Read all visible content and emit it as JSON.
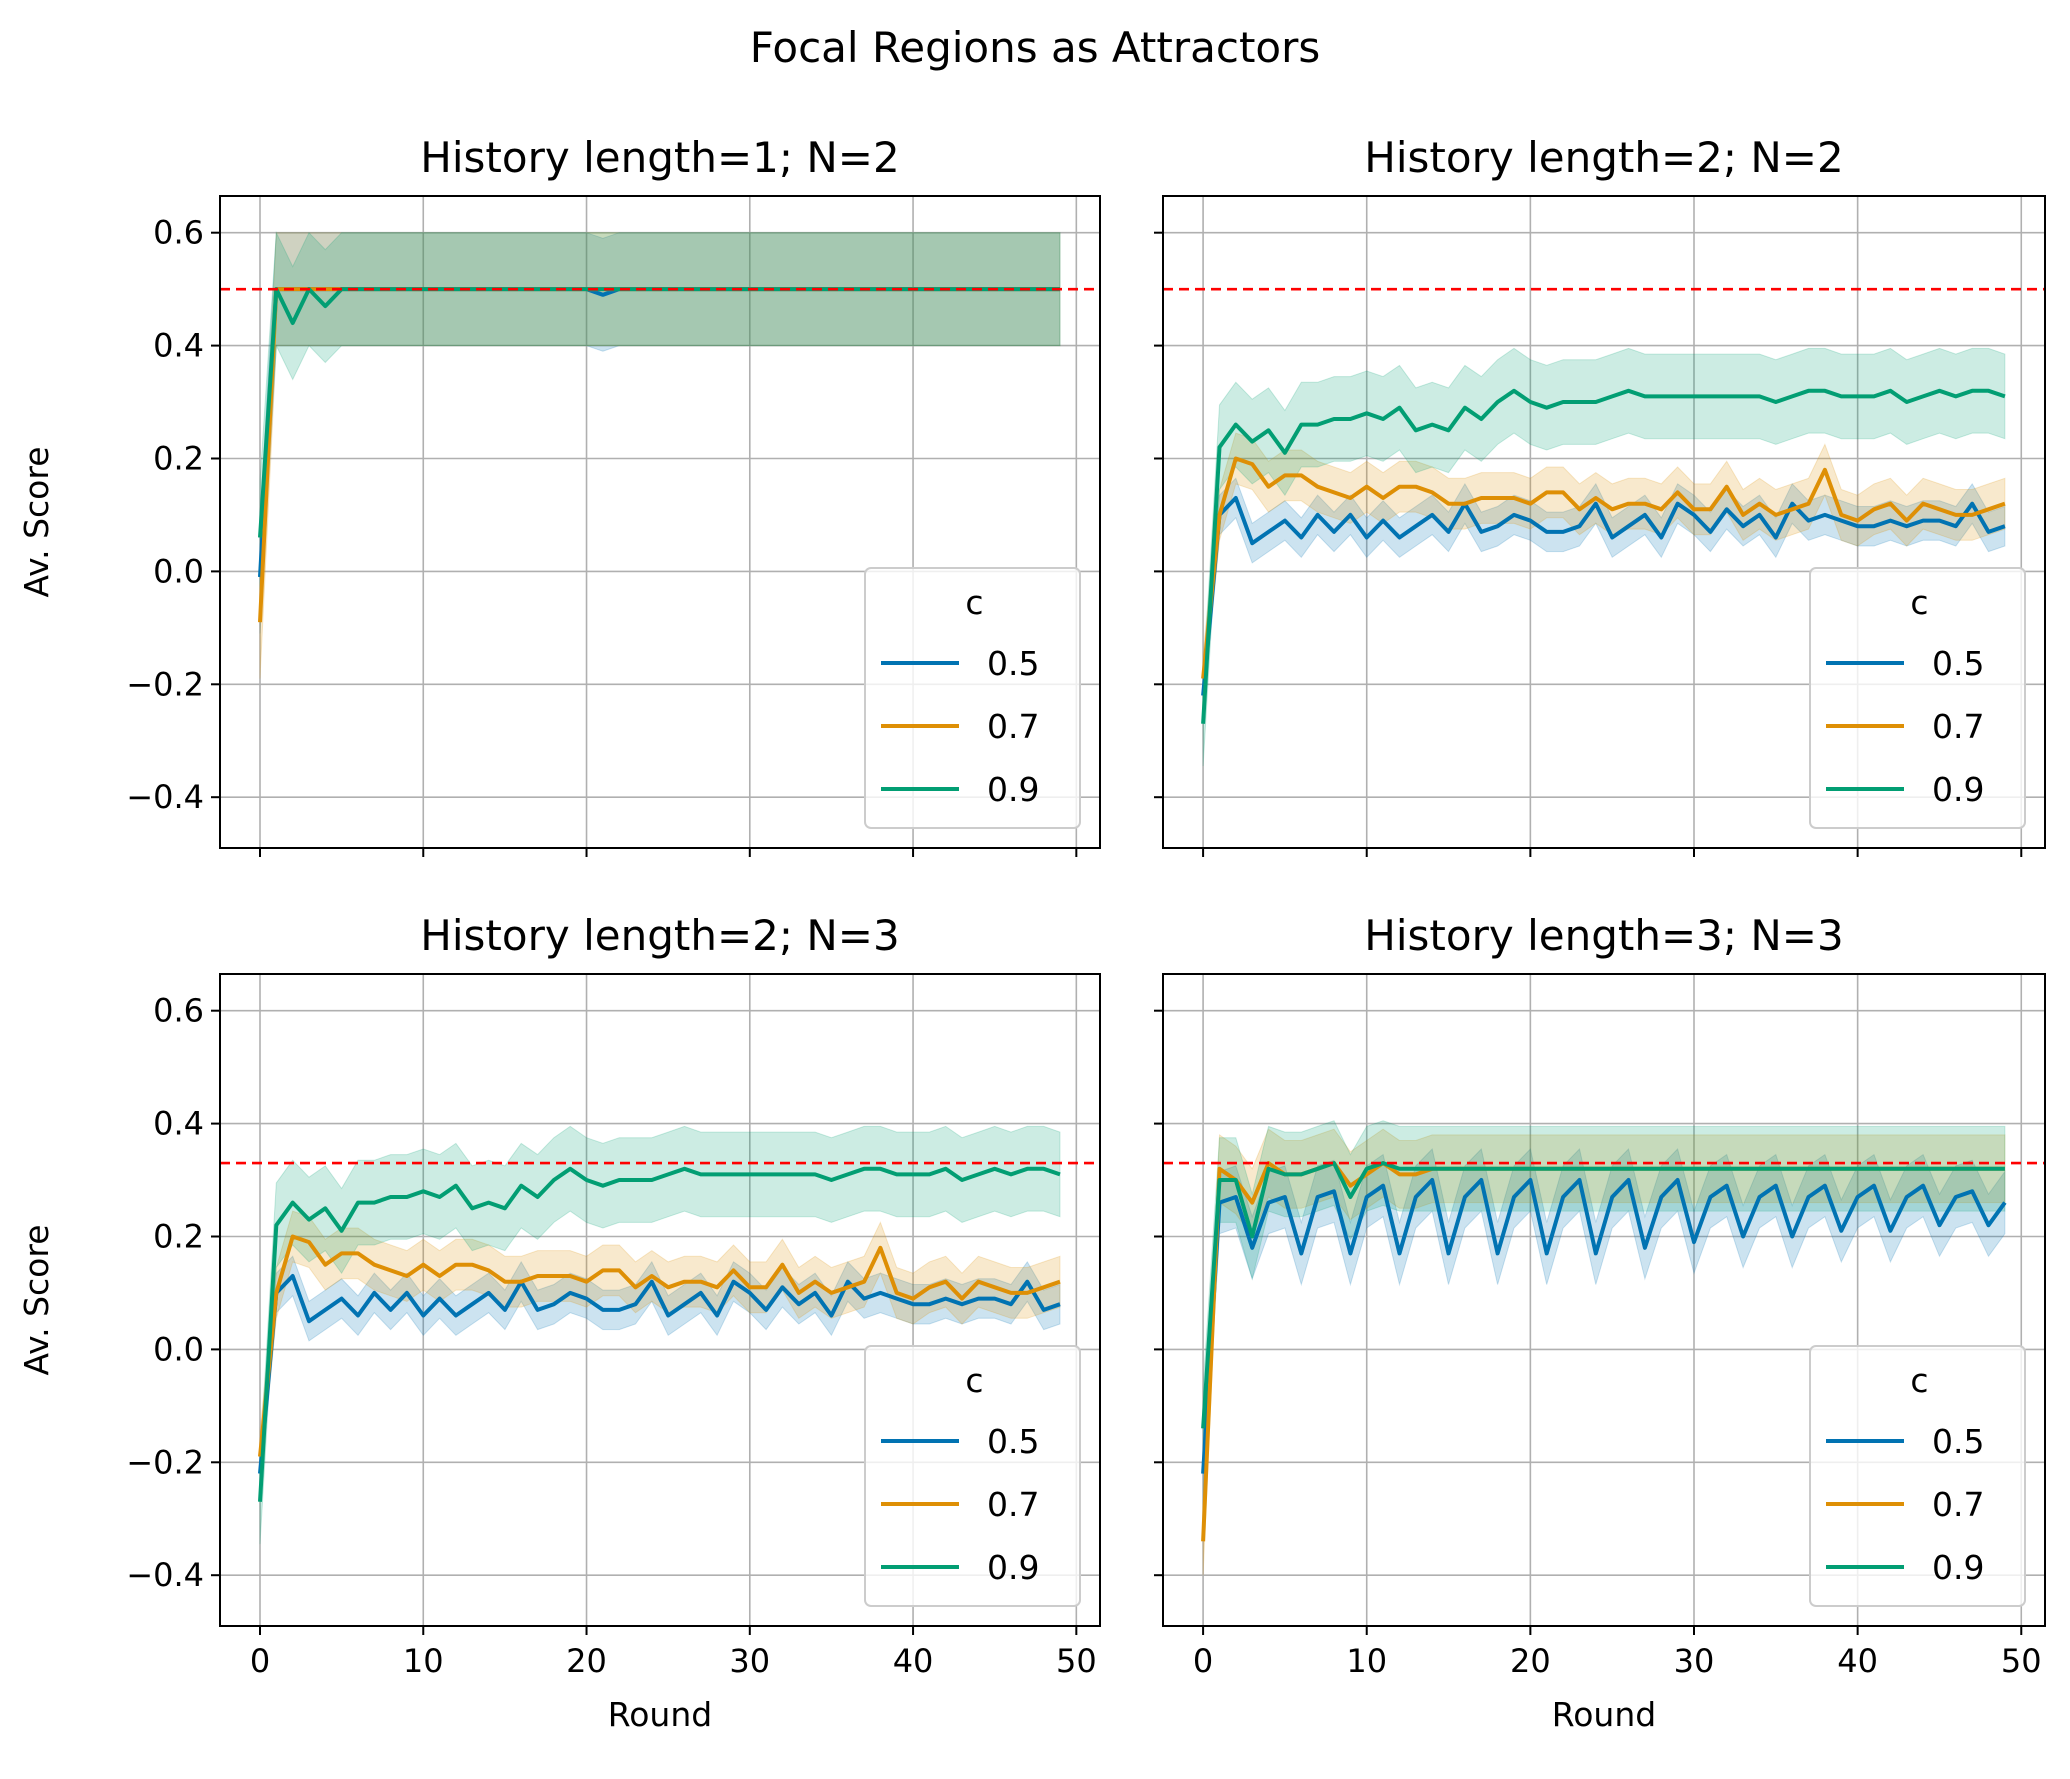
{
  "figure": {
    "title": "Focal Regions as Attractors"
  },
  "colors": {
    "c05": "#0173b2",
    "c07": "#de8f05",
    "c09": "#029e73",
    "reference": "#ff0000",
    "grid": "#b0b0b0"
  },
  "legend": {
    "title": "c",
    "placement": "lower right",
    "entries": [
      "0.5",
      "0.7",
      "0.9"
    ]
  },
  "axes_common": {
    "xlabel": "Round",
    "ylabel": "Av. Score",
    "xticks": [
      0,
      10,
      20,
      30,
      40,
      50
    ],
    "xtick_labels": [
      "0",
      "10",
      "20",
      "30",
      "40",
      "50"
    ],
    "yticks": [
      -0.4,
      -0.2,
      0.0,
      0.2,
      0.4,
      0.6
    ],
    "ytick_labels": [
      "−0.4",
      "−0.2",
      "0.0",
      "0.2",
      "0.4",
      "0.6"
    ],
    "xlim": [
      -2.45,
      51.45
    ],
    "ylim": [
      -0.49,
      0.665
    ]
  },
  "chart_data": [
    {
      "type": "line",
      "title": "History length=1; N=2",
      "reference_line": 0.5,
      "x": [
        0,
        1,
        2,
        3,
        4,
        5,
        6,
        7,
        8,
        9,
        10,
        11,
        12,
        13,
        14,
        15,
        16,
        17,
        18,
        19,
        20,
        21,
        22,
        23,
        24,
        25,
        26,
        27,
        28,
        29,
        30,
        31,
        32,
        33,
        34,
        35,
        36,
        37,
        38,
        39,
        40,
        41,
        42,
        43,
        44,
        45,
        46,
        47,
        48,
        49
      ],
      "series": [
        {
          "name": "0.5",
          "values": [
            -0.01,
            0.5,
            0.5,
            0.5,
            0.5,
            0.5,
            0.5,
            0.5,
            0.5,
            0.5,
            0.5,
            0.5,
            0.5,
            0.5,
            0.5,
            0.5,
            0.5,
            0.5,
            0.5,
            0.5,
            0.5,
            0.49,
            0.5,
            0.5,
            0.5,
            0.5,
            0.5,
            0.5,
            0.5,
            0.5,
            0.5,
            0.5,
            0.5,
            0.5,
            0.5,
            0.5,
            0.5,
            0.5,
            0.5,
            0.5,
            0.5,
            0.5,
            0.5,
            0.5,
            0.5,
            0.5,
            0.5,
            0.5,
            0.5,
            0.5
          ],
          "band": 0.1
        },
        {
          "name": "0.7",
          "values": [
            -0.09,
            0.5,
            0.5,
            0.5,
            0.5,
            0.5,
            0.5,
            0.5,
            0.5,
            0.5,
            0.5,
            0.5,
            0.5,
            0.5,
            0.5,
            0.5,
            0.5,
            0.5,
            0.5,
            0.5,
            0.5,
            0.5,
            0.5,
            0.5,
            0.5,
            0.5,
            0.5,
            0.5,
            0.5,
            0.5,
            0.5,
            0.5,
            0.5,
            0.5,
            0.5,
            0.5,
            0.5,
            0.5,
            0.5,
            0.5,
            0.5,
            0.5,
            0.5,
            0.5,
            0.5,
            0.5,
            0.5,
            0.5,
            0.5,
            0.5
          ],
          "band": 0.1
        },
        {
          "name": "0.9",
          "values": [
            0.06,
            0.5,
            0.44,
            0.5,
            0.47,
            0.5,
            0.5,
            0.5,
            0.5,
            0.5,
            0.5,
            0.5,
            0.5,
            0.5,
            0.5,
            0.5,
            0.5,
            0.5,
            0.5,
            0.5,
            0.5,
            0.5,
            0.5,
            0.5,
            0.5,
            0.5,
            0.5,
            0.5,
            0.5,
            0.5,
            0.5,
            0.5,
            0.5,
            0.5,
            0.5,
            0.5,
            0.5,
            0.5,
            0.5,
            0.5,
            0.5,
            0.5,
            0.5,
            0.5,
            0.5,
            0.5,
            0.5,
            0.5,
            0.5,
            0.5
          ],
          "band": 0.1
        }
      ]
    },
    {
      "type": "line",
      "title": "History length=2; N=2",
      "reference_line": 0.5,
      "x": [
        0,
        1,
        2,
        3,
        4,
        5,
        6,
        7,
        8,
        9,
        10,
        11,
        12,
        13,
        14,
        15,
        16,
        17,
        18,
        19,
        20,
        21,
        22,
        23,
        24,
        25,
        26,
        27,
        28,
        29,
        30,
        31,
        32,
        33,
        34,
        35,
        36,
        37,
        38,
        39,
        40,
        41,
        42,
        43,
        44,
        45,
        46,
        47,
        48,
        49
      ],
      "series": [
        {
          "name": "0.5",
          "values": [
            -0.22,
            0.1,
            0.13,
            0.05,
            0.07,
            0.09,
            0.06,
            0.1,
            0.07,
            0.1,
            0.06,
            0.09,
            0.06,
            0.08,
            0.1,
            0.07,
            0.12,
            0.07,
            0.08,
            0.1,
            0.09,
            0.07,
            0.07,
            0.08,
            0.12,
            0.06,
            0.08,
            0.1,
            0.06,
            0.12,
            0.1,
            0.07,
            0.11,
            0.08,
            0.1,
            0.06,
            0.12,
            0.09,
            0.1,
            0.09,
            0.08,
            0.08,
            0.09,
            0.08,
            0.09,
            0.09,
            0.08,
            0.12,
            0.07,
            0.08
          ],
          "band": 0.035
        },
        {
          "name": "0.7",
          "values": [
            -0.19,
            0.1,
            0.2,
            0.19,
            0.15,
            0.17,
            0.17,
            0.15,
            0.14,
            0.13,
            0.15,
            0.13,
            0.15,
            0.15,
            0.14,
            0.12,
            0.12,
            0.13,
            0.13,
            0.13,
            0.12,
            0.14,
            0.14,
            0.11,
            0.13,
            0.11,
            0.12,
            0.12,
            0.11,
            0.14,
            0.11,
            0.11,
            0.15,
            0.1,
            0.12,
            0.1,
            0.11,
            0.12,
            0.18,
            0.1,
            0.09,
            0.11,
            0.12,
            0.09,
            0.12,
            0.11,
            0.1,
            0.1,
            0.11,
            0.12
          ],
          "band": 0.045
        },
        {
          "name": "0.9",
          "values": [
            -0.27,
            0.22,
            0.26,
            0.23,
            0.25,
            0.21,
            0.26,
            0.26,
            0.27,
            0.27,
            0.28,
            0.27,
            0.29,
            0.25,
            0.26,
            0.25,
            0.29,
            0.27,
            0.3,
            0.32,
            0.3,
            0.29,
            0.3,
            0.3,
            0.3,
            0.31,
            0.32,
            0.31,
            0.31,
            0.31,
            0.31,
            0.31,
            0.31,
            0.31,
            0.31,
            0.3,
            0.31,
            0.32,
            0.32,
            0.31,
            0.31,
            0.31,
            0.32,
            0.3,
            0.31,
            0.32,
            0.31,
            0.32,
            0.32,
            0.31
          ],
          "band": 0.075
        }
      ]
    },
    {
      "type": "line",
      "title": "History length=2; N=3",
      "reference_line": 0.33,
      "x": [
        0,
        1,
        2,
        3,
        4,
        5,
        6,
        7,
        8,
        9,
        10,
        11,
        12,
        13,
        14,
        15,
        16,
        17,
        18,
        19,
        20,
        21,
        22,
        23,
        24,
        25,
        26,
        27,
        28,
        29,
        30,
        31,
        32,
        33,
        34,
        35,
        36,
        37,
        38,
        39,
        40,
        41,
        42,
        43,
        44,
        45,
        46,
        47,
        48,
        49
      ],
      "series": [
        {
          "name": "0.5",
          "values": [
            -0.22,
            0.1,
            0.13,
            0.05,
            0.07,
            0.09,
            0.06,
            0.1,
            0.07,
            0.1,
            0.06,
            0.09,
            0.06,
            0.08,
            0.1,
            0.07,
            0.12,
            0.07,
            0.08,
            0.1,
            0.09,
            0.07,
            0.07,
            0.08,
            0.12,
            0.06,
            0.08,
            0.1,
            0.06,
            0.12,
            0.1,
            0.07,
            0.11,
            0.08,
            0.1,
            0.06,
            0.12,
            0.09,
            0.1,
            0.09,
            0.08,
            0.08,
            0.09,
            0.08,
            0.09,
            0.09,
            0.08,
            0.12,
            0.07,
            0.08
          ],
          "band": 0.035
        },
        {
          "name": "0.7",
          "values": [
            -0.19,
            0.1,
            0.2,
            0.19,
            0.15,
            0.17,
            0.17,
            0.15,
            0.14,
            0.13,
            0.15,
            0.13,
            0.15,
            0.15,
            0.14,
            0.12,
            0.12,
            0.13,
            0.13,
            0.13,
            0.12,
            0.14,
            0.14,
            0.11,
            0.13,
            0.11,
            0.12,
            0.12,
            0.11,
            0.14,
            0.11,
            0.11,
            0.15,
            0.1,
            0.12,
            0.1,
            0.11,
            0.12,
            0.18,
            0.1,
            0.09,
            0.11,
            0.12,
            0.09,
            0.12,
            0.11,
            0.1,
            0.1,
            0.11,
            0.12
          ],
          "band": 0.045
        },
        {
          "name": "0.9",
          "values": [
            -0.27,
            0.22,
            0.26,
            0.23,
            0.25,
            0.21,
            0.26,
            0.26,
            0.27,
            0.27,
            0.28,
            0.27,
            0.29,
            0.25,
            0.26,
            0.25,
            0.29,
            0.27,
            0.3,
            0.32,
            0.3,
            0.29,
            0.3,
            0.3,
            0.3,
            0.31,
            0.32,
            0.31,
            0.31,
            0.31,
            0.31,
            0.31,
            0.31,
            0.31,
            0.31,
            0.3,
            0.31,
            0.32,
            0.32,
            0.31,
            0.31,
            0.31,
            0.32,
            0.3,
            0.31,
            0.32,
            0.31,
            0.32,
            0.32,
            0.31
          ],
          "band": 0.075
        }
      ]
    },
    {
      "type": "line",
      "title": "History length=3; N=3",
      "reference_line": 0.33,
      "x": [
        0,
        1,
        2,
        3,
        4,
        5,
        6,
        7,
        8,
        9,
        10,
        11,
        12,
        13,
        14,
        15,
        16,
        17,
        18,
        19,
        20,
        21,
        22,
        23,
        24,
        25,
        26,
        27,
        28,
        29,
        30,
        31,
        32,
        33,
        34,
        35,
        36,
        37,
        38,
        39,
        40,
        41,
        42,
        43,
        44,
        45,
        46,
        47,
        48,
        49
      ],
      "series": [
        {
          "name": "0.5",
          "values": [
            -0.22,
            0.26,
            0.27,
            0.18,
            0.26,
            0.27,
            0.17,
            0.27,
            0.28,
            0.17,
            0.27,
            0.29,
            0.17,
            0.27,
            0.3,
            0.17,
            0.27,
            0.3,
            0.17,
            0.27,
            0.3,
            0.17,
            0.27,
            0.3,
            0.17,
            0.27,
            0.3,
            0.18,
            0.27,
            0.3,
            0.19,
            0.27,
            0.29,
            0.2,
            0.27,
            0.29,
            0.2,
            0.27,
            0.29,
            0.21,
            0.27,
            0.29,
            0.21,
            0.27,
            0.29,
            0.22,
            0.27,
            0.28,
            0.22,
            0.26
          ],
          "band": 0.055
        },
        {
          "name": "0.7",
          "values": [
            -0.34,
            0.32,
            0.3,
            0.26,
            0.33,
            0.31,
            0.31,
            0.32,
            0.33,
            0.29,
            0.31,
            0.33,
            0.31,
            0.31,
            0.32,
            0.32,
            0.32,
            0.32,
            0.32,
            0.32,
            0.32,
            0.32,
            0.32,
            0.32,
            0.32,
            0.32,
            0.32,
            0.32,
            0.32,
            0.32,
            0.32,
            0.32,
            0.32,
            0.32,
            0.32,
            0.32,
            0.32,
            0.32,
            0.32,
            0.32,
            0.32,
            0.32,
            0.32,
            0.32,
            0.32,
            0.32,
            0.32,
            0.32,
            0.32,
            0.32
          ],
          "band": 0.06
        },
        {
          "name": "0.9",
          "values": [
            -0.14,
            0.3,
            0.3,
            0.2,
            0.32,
            0.31,
            0.31,
            0.32,
            0.33,
            0.27,
            0.32,
            0.33,
            0.32,
            0.32,
            0.32,
            0.32,
            0.32,
            0.32,
            0.32,
            0.32,
            0.32,
            0.32,
            0.32,
            0.32,
            0.32,
            0.32,
            0.32,
            0.32,
            0.32,
            0.32,
            0.32,
            0.32,
            0.32,
            0.32,
            0.32,
            0.32,
            0.32,
            0.32,
            0.32,
            0.32,
            0.32,
            0.32,
            0.32,
            0.32,
            0.32,
            0.32,
            0.32,
            0.32,
            0.32,
            0.32
          ],
          "band": 0.075
        }
      ]
    }
  ]
}
